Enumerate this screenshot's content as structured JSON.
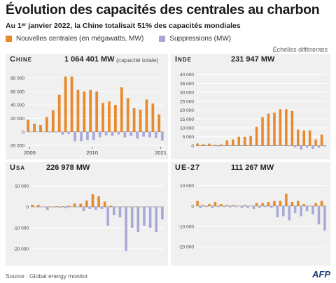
{
  "header": {
    "title": "Évolution des capacités des centrales au charbon",
    "subtitle": "Au 1ᵉʳ janvier 2022, la Chine totalisait 51% des capacités mondiales"
  },
  "legend": {
    "new_label": "Nouvelles centrales (en mégawatts, MW)",
    "removed_label": "Suppressions (MW)"
  },
  "scale_note": "Échelles différentes",
  "colors": {
    "new": "#e8892b",
    "removed": "#a9a9d8",
    "panel": "#f0f0f0",
    "grid": "#ffffff"
  },
  "years": [
    2000,
    2001,
    2002,
    2003,
    2004,
    2005,
    2006,
    2007,
    2008,
    2009,
    2010,
    2011,
    2012,
    2013,
    2014,
    2015,
    2016,
    2017,
    2018,
    2019,
    2020,
    2021
  ],
  "chart_data": [
    {
      "type": "bar",
      "name": "Chine",
      "total": "1 064 401 MW",
      "total_note": "(capacité totale)",
      "yticks": [
        -20000,
        0,
        20000,
        40000,
        60000,
        80000
      ],
      "ylim": [
        -22000,
        95000
      ],
      "xtick_labels": [
        "2000",
        "2010",
        "2021"
      ],
      "series": [
        {
          "name": "Nouvelles centrales (en mégawatts, MW)",
          "values": [
            18000,
            12000,
            10000,
            22000,
            32000,
            55000,
            82000,
            82000,
            62000,
            60000,
            62000,
            60000,
            43000,
            45000,
            40000,
            66000,
            50000,
            35000,
            33000,
            48000,
            42000,
            26000
          ]
        },
        {
          "name": "Suppressions (MW)",
          "values": [
            -400,
            -300,
            -500,
            -800,
            -1000,
            -4000,
            -3000,
            -14000,
            -14000,
            -12000,
            -12000,
            -8000,
            -5000,
            -6000,
            -4000,
            -8000,
            -6000,
            -10000,
            -7000,
            -8000,
            -9000,
            -13000
          ]
        }
      ]
    },
    {
      "type": "bar",
      "name": "Inde",
      "total": "231 947 MW",
      "yticks": [
        0,
        5000,
        10000,
        15000,
        20000,
        25000,
        30000,
        35000,
        40000
      ],
      "ylim": [
        -1800,
        43000
      ],
      "xtick_labels": [],
      "series": [
        {
          "name": "Nouvelles centrales (en mégawatts, MW)",
          "values": [
            1200,
            800,
            1100,
            500,
            700,
            3000,
            3500,
            5000,
            5000,
            5500,
            10500,
            16000,
            18000,
            18500,
            20500,
            20500,
            19500,
            9000,
            8500,
            8500,
            3500,
            6200
          ]
        },
        {
          "name": "Suppressions (MW)",
          "values": [
            0,
            -200,
            -100,
            -500,
            0,
            0,
            0,
            0,
            0,
            0,
            0,
            -200,
            0,
            0,
            0,
            -300,
            -1000,
            -2200,
            -1200,
            -1800,
            -1200,
            -500
          ]
        }
      ]
    },
    {
      "type": "bar",
      "name": "Usa",
      "total": "226 978 MW",
      "yticks": [
        -20000,
        -10000,
        0,
        10000
      ],
      "ylim": [
        -22000,
        14000
      ],
      "xtick_labels": [],
      "series": [
        {
          "name": "Nouvelles centrales (en mégawatts, MW)",
          "values": [
            1000,
            900,
            0,
            200,
            300,
            300,
            500,
            1500,
            1500,
            3000,
            6000,
            5000,
            2500,
            500,
            0,
            100,
            100,
            0,
            0,
            0,
            0,
            0
          ]
        },
        {
          "name": "Suppressions (MW)",
          "values": [
            -100,
            -200,
            -1500,
            -300,
            -500,
            -700,
            -200,
            -200,
            -2000,
            -1000,
            -1500,
            -1000,
            -9000,
            -4000,
            -5000,
            -21000,
            -10000,
            -12000,
            -9000,
            -10000,
            -12000,
            -6000
          ]
        }
      ]
    },
    {
      "type": "bar",
      "name": "UE-27",
      "total": "111 267 MW",
      "yticks": [
        -20000,
        -10000,
        0,
        10000
      ],
      "ylim": [
        -23000,
        14000
      ],
      "xtick_labels": [],
      "series": [
        {
          "name": "Nouvelles centrales (en mégawatts, MW)",
          "values": [
            2500,
            500,
            1000,
            2000,
            1000,
            500,
            500,
            0,
            500,
            0,
            1500,
            1500,
            2000,
            2500,
            2500,
            6000,
            2000,
            2500,
            1000,
            0,
            1500,
            2500
          ]
        },
        {
          "name": "Suppressions (MW)",
          "values": [
            -1000,
            -500,
            -1000,
            -500,
            -500,
            -700,
            -500,
            -1000,
            -1000,
            -1500,
            -1000,
            -500,
            -1000,
            -5500,
            -5000,
            -7000,
            -3500,
            -5000,
            -2500,
            -4000,
            -9000,
            -12000
          ]
        }
      ]
    }
  ],
  "source": "Source : Global energy monitor",
  "logo": "AFP"
}
